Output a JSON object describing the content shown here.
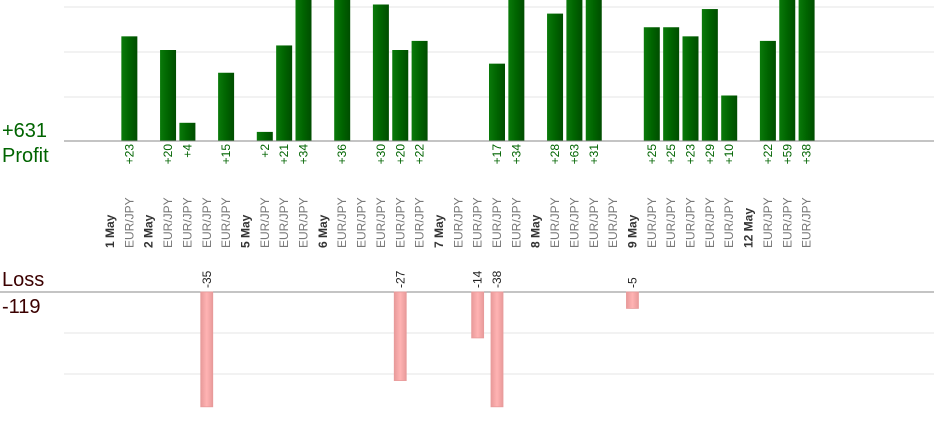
{
  "profit_summary": {
    "total": "+631",
    "label": "Profit"
  },
  "loss_summary": {
    "label": "Loss",
    "total": "-119"
  },
  "colors": {
    "profit_bar": "#006400",
    "profit_bar_edge": "#0a7a0a",
    "profit_text": "#006400",
    "loss_bar": "#ffb3b3",
    "loss_bar_edge": "#e89a9a",
    "loss_text": "#3b0000",
    "loss_value_text": "#222222",
    "axis": "#888888",
    "grid": "#e6e6e6",
    "date_text": "#333333",
    "pair_text": "#777777"
  },
  "chart_data": {
    "type": "bar",
    "x_labels": [
      {
        "date": "1 May"
      },
      {
        "pair": "EUR/JPY"
      },
      {
        "date": "2 May"
      },
      {
        "pair": "EUR/JPY"
      },
      {
        "pair": "EUR/JPY"
      },
      {
        "pair": "EUR/JPY"
      },
      {
        "pair": "EUR/JPY"
      },
      {
        "date": "5 May"
      },
      {
        "pair": "EUR/JPY"
      },
      {
        "pair": "EUR/JPY"
      },
      {
        "pair": "EUR/JPY"
      },
      {
        "date": "6 May"
      },
      {
        "pair": "EUR/JPY"
      },
      {
        "pair": "EUR/JPY"
      },
      {
        "pair": "EUR/JPY"
      },
      {
        "pair": "EUR/JPY"
      },
      {
        "pair": "EUR/JPY"
      },
      {
        "date": "7 May"
      },
      {
        "pair": "EUR/JPY"
      },
      {
        "pair": "EUR/JPY"
      },
      {
        "pair": "EUR/JPY"
      },
      {
        "pair": "EUR/JPY"
      },
      {
        "date": "8 May"
      },
      {
        "pair": "EUR/JPY"
      },
      {
        "pair": "EUR/JPY"
      },
      {
        "pair": "EUR/JPY"
      },
      {
        "pair": "EUR/JPY"
      },
      {
        "date": "9 May"
      },
      {
        "pair": "EUR/JPY"
      },
      {
        "pair": "EUR/JPY"
      },
      {
        "pair": "EUR/JPY"
      },
      {
        "pair": "EUR/JPY"
      },
      {
        "pair": "EUR/JPY"
      },
      {
        "date": "12 May"
      },
      {
        "pair": "EUR/JPY"
      },
      {
        "pair": "EUR/JPY"
      },
      {
        "pair": "EUR/JPY"
      }
    ],
    "profit_series": [
      {
        "column": 1,
        "value": 23,
        "label": "+23"
      },
      {
        "column": 3,
        "value": 20,
        "label": "+20"
      },
      {
        "column": 4,
        "value": 4,
        "label": "+4"
      },
      {
        "column": 6,
        "value": 15,
        "label": "+15"
      },
      {
        "column": 8,
        "value": 2,
        "label": "+2"
      },
      {
        "column": 9,
        "value": 21,
        "label": "+21"
      },
      {
        "column": 10,
        "value": 34,
        "label": "+34"
      },
      {
        "column": 12,
        "value": 36,
        "label": "+36"
      },
      {
        "column": 14,
        "value": 30,
        "label": "+30"
      },
      {
        "column": 15,
        "value": 20,
        "label": "+20"
      },
      {
        "column": 16,
        "value": 22,
        "label": "+22"
      },
      {
        "column": 20,
        "value": 17,
        "label": "+17"
      },
      {
        "column": 21,
        "value": 34,
        "label": "+34"
      },
      {
        "column": 23,
        "value": 28,
        "label": "+28"
      },
      {
        "column": 24,
        "value": 63,
        "label": "+63"
      },
      {
        "column": 25,
        "value": 31,
        "label": "+31"
      },
      {
        "column": 28,
        "value": 25,
        "label": "+25"
      },
      {
        "column": 29,
        "value": 25,
        "label": "+25"
      },
      {
        "column": 30,
        "value": 23,
        "label": "+23"
      },
      {
        "column": 31,
        "value": 29,
        "label": "+29"
      },
      {
        "column": 32,
        "value": 10,
        "label": "+10"
      },
      {
        "column": 34,
        "value": 22,
        "label": "+22"
      },
      {
        "column": 35,
        "value": 59,
        "label": "+59"
      },
      {
        "column": 36,
        "value": 38,
        "label": "+38"
      }
    ],
    "loss_series": [
      {
        "column": 5,
        "value": -35,
        "label": "-35"
      },
      {
        "column": 15,
        "value": -27,
        "label": "-27"
      },
      {
        "column": 19,
        "value": -14,
        "label": "-14"
      },
      {
        "column": 20,
        "value": -38,
        "label": "-38"
      },
      {
        "column": 27,
        "value": -5,
        "label": "-5"
      }
    ],
    "profit_scale_max": 31,
    "loss_scale_max": 35,
    "grid": true
  }
}
